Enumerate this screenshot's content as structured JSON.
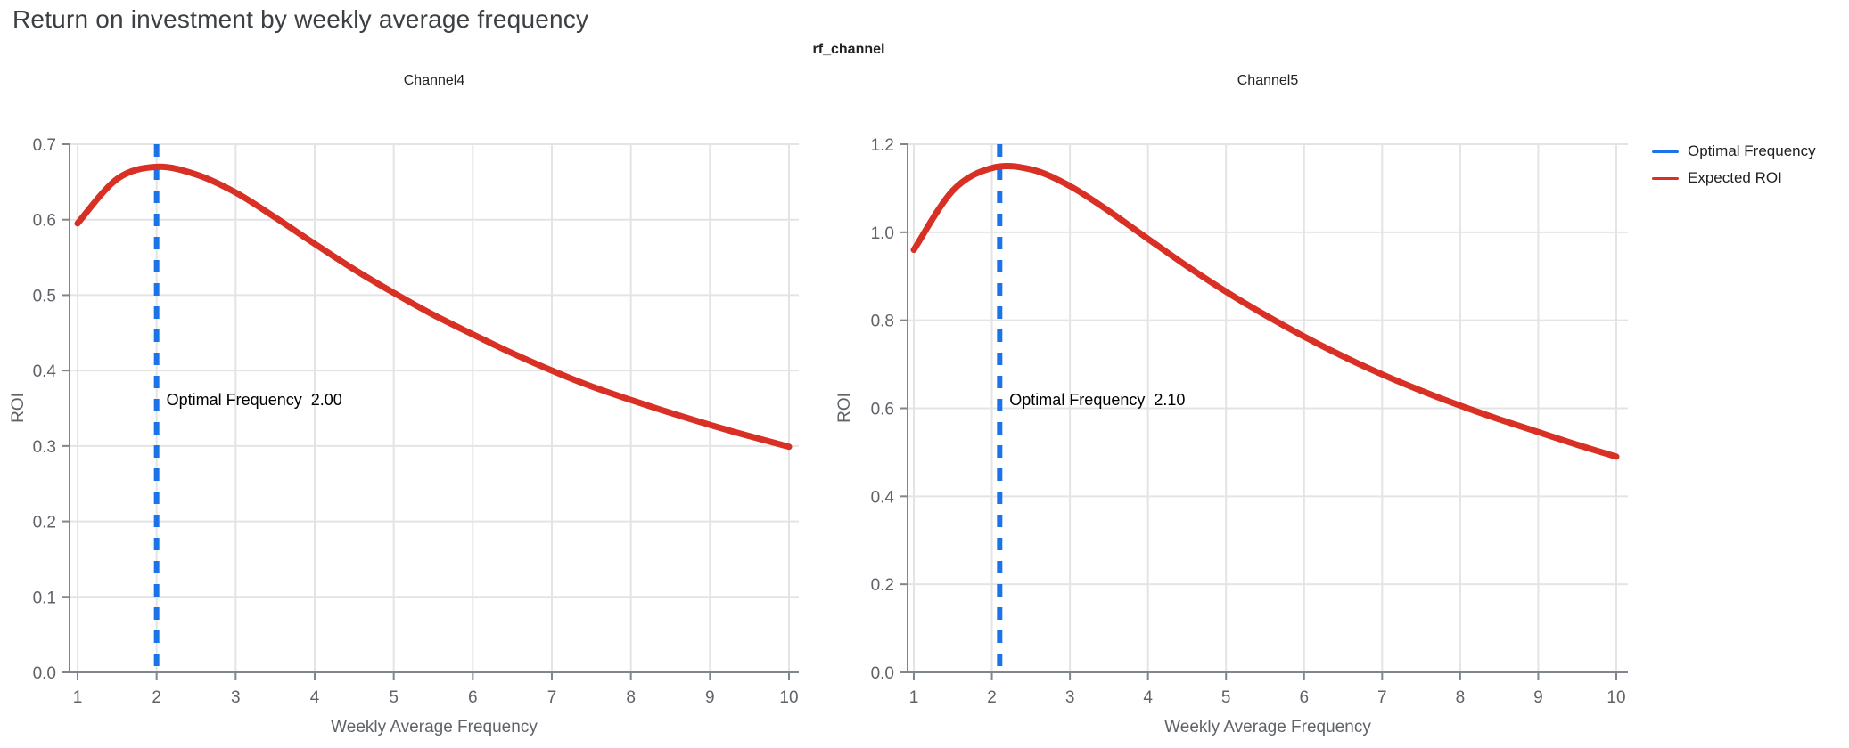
{
  "page": {
    "title": "Return on investment by weekly average frequency"
  },
  "figure": {
    "title": "rf_channel",
    "legend": [
      {
        "label": "Optimal Frequency",
        "color": "#1a73e8"
      },
      {
        "label": "Expected ROI",
        "color": "#d93025"
      }
    ],
    "colors": {
      "curve": "#d93025",
      "optimal_line": "#1a73e8",
      "grid": "#e4e4e4",
      "axis": "#80868b",
      "tick_label": "#5f6368",
      "annotation_text": "#000000",
      "page_title": "#3c4043"
    }
  },
  "chart_data": [
    {
      "type": "line",
      "title": "Channel4",
      "xlabel": "Weekly Average Frequency",
      "ylabel": "ROI",
      "xlim": [
        0.9,
        10.1
      ],
      "ylim": [
        0,
        0.7
      ],
      "x_ticks": [
        1,
        2,
        3,
        4,
        5,
        6,
        7,
        8,
        9,
        10
      ],
      "y_ticks": [
        "0.0",
        "0.1",
        "0.2",
        "0.3",
        "0.4",
        "0.5",
        "0.6",
        "0.7"
      ],
      "grid": true,
      "annotation_text": "Optimal Frequency  2.00",
      "vline": {
        "name": "Optimal Frequency",
        "x": 2.0,
        "color": "#1a73e8",
        "style": "dashed"
      },
      "series": [
        {
          "name": "Expected ROI",
          "color": "#d93025",
          "x": [
            1,
            1.5,
            2,
            2.5,
            3,
            3.5,
            4,
            4.5,
            5,
            5.5,
            6,
            6.5,
            7,
            7.5,
            8,
            8.5,
            9,
            9.5,
            10
          ],
          "y": [
            0.595,
            0.654,
            0.67,
            0.66,
            0.636,
            0.603,
            0.568,
            0.534,
            0.503,
            0.474,
            0.448,
            0.423,
            0.4,
            0.379,
            0.361,
            0.344,
            0.328,
            0.313,
            0.299
          ]
        }
      ]
    },
    {
      "type": "line",
      "title": "Channel5",
      "xlabel": "Weekly Average Frequency",
      "ylabel": "ROI",
      "xlim": [
        0.9,
        10.1
      ],
      "ylim": [
        0,
        1.2
      ],
      "x_ticks": [
        1,
        2,
        3,
        4,
        5,
        6,
        7,
        8,
        9,
        10
      ],
      "y_ticks": [
        "0.0",
        "0.2",
        "0.4",
        "0.6",
        "0.8",
        "1.0",
        "1.2"
      ],
      "grid": true,
      "annotation_text": "Optimal Frequency  2.10",
      "vline": {
        "name": "Optimal Frequency",
        "x": 2.1,
        "color": "#1a73e8",
        "style": "dashed"
      },
      "series": [
        {
          "name": "Expected ROI",
          "color": "#d93025",
          "x": [
            1,
            1.5,
            2,
            2.5,
            3,
            3.5,
            4,
            4.5,
            5,
            5.5,
            6,
            6.5,
            7,
            7.5,
            8,
            8.5,
            9,
            9.5,
            10
          ],
          "y": [
            0.96,
            1.095,
            1.146,
            1.143,
            1.105,
            1.048,
            0.985,
            0.923,
            0.865,
            0.812,
            0.763,
            0.718,
            0.677,
            0.64,
            0.606,
            0.575,
            0.546,
            0.517,
            0.49
          ]
        }
      ]
    }
  ]
}
